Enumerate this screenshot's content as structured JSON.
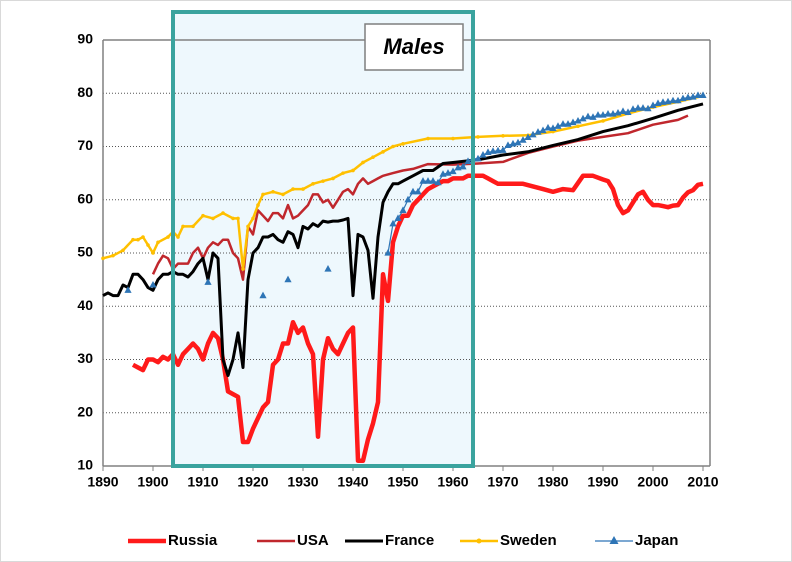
{
  "chart_data": {
    "type": "line",
    "annotation": "Males",
    "highlight": [
      1904,
      1964
    ],
    "xlim": [
      1890,
      2010
    ],
    "xticks": [
      1890,
      1900,
      1910,
      1920,
      1930,
      1940,
      1950,
      1960,
      1970,
      1980,
      1990,
      2000,
      2010
    ],
    "ylim": [
      10,
      90
    ],
    "yticks": [
      10,
      20,
      30,
      40,
      50,
      60,
      70,
      80,
      90
    ],
    "grid": true,
    "legend": "bottom",
    "series": [
      {
        "name": "Russia",
        "color": "#ff1a1a",
        "marker": "none",
        "x": [
          1896,
          1897,
          1898,
          1899,
          1900,
          1901,
          1902,
          1903,
          1904,
          1905,
          1906,
          1907,
          1908,
          1909,
          1910,
          1911,
          1912,
          1913,
          1914,
          1915,
          1916,
          1917,
          1918,
          1919,
          1920,
          1921,
          1922,
          1923,
          1924,
          1925,
          1926,
          1927,
          1928,
          1929,
          1930,
          1931,
          1932,
          1933,
          1934,
          1935,
          1936,
          1937,
          1938,
          1939,
          1940,
          1941,
          1942,
          1943,
          1944,
          1945,
          1946,
          1947,
          1948,
          1949,
          1950,
          1951,
          1952,
          1953,
          1954,
          1955,
          1956,
          1957,
          1958,
          1959,
          1960,
          1961,
          1962,
          1963,
          1964,
          1965,
          1966,
          1967,
          1968,
          1969,
          1970,
          1972,
          1974,
          1976,
          1978,
          1980,
          1982,
          1984,
          1986,
          1988,
          1990,
          1991,
          1992,
          1993,
          1994,
          1995,
          1996,
          1997,
          1998,
          1999,
          2000,
          2001,
          2002,
          2003,
          2004,
          2005,
          2006,
          2007,
          2008,
          2009,
          2010
        ],
        "values": [
          29,
          28.5,
          28,
          30,
          30,
          29.5,
          30.5,
          30,
          31,
          29,
          31,
          32,
          33,
          32,
          30,
          33,
          35,
          34,
          30,
          24,
          23.5,
          23,
          14.5,
          14.5,
          17,
          19,
          21,
          22,
          29,
          30,
          33,
          33,
          37,
          35,
          36,
          33,
          31,
          15.5,
          30,
          34,
          32,
          31,
          33,
          35,
          36,
          11,
          11,
          15,
          18,
          22,
          46,
          41,
          52,
          55,
          57,
          57,
          59,
          60,
          61,
          62,
          62.5,
          63,
          63.5,
          63.5,
          64,
          64,
          64,
          64.5,
          64.5,
          64.5,
          64.5,
          64,
          63.5,
          63,
          63,
          63,
          63,
          62.5,
          62,
          61.5,
          62,
          61.8,
          64.5,
          64.5,
          63.8,
          63.5,
          62,
          59,
          57.5,
          58,
          59.5,
          61,
          61.5,
          60,
          59,
          59,
          58.8,
          58.6,
          58.9,
          59,
          60.4,
          61.4,
          61.8,
          62.8,
          63
        ]
      },
      {
        "name": "USA",
        "color": "#c0272d",
        "marker": "none",
        "x": [
          1900,
          1901,
          1902,
          1903,
          1904,
          1905,
          1906,
          1907,
          1908,
          1909,
          1910,
          1911,
          1912,
          1913,
          1914,
          1915,
          1916,
          1917,
          1918,
          1919,
          1920,
          1921,
          1922,
          1923,
          1924,
          1925,
          1926,
          1927,
          1928,
          1929,
          1930,
          1931,
          1932,
          1933,
          1934,
          1935,
          1936,
          1937,
          1938,
          1939,
          1940,
          1941,
          1942,
          1943,
          1944,
          1945,
          1946,
          1948,
          1950,
          1952,
          1955,
          1960,
          1965,
          1970,
          1975,
          1980,
          1985,
          1990,
          1995,
          2000,
          2005,
          2007
        ],
        "values": [
          46,
          48,
          49.5,
          49,
          47,
          48,
          48,
          48,
          50,
          51,
          49,
          51,
          52,
          51.5,
          52.5,
          52.5,
          50,
          49,
          45,
          55,
          53.5,
          58,
          57,
          56,
          57.5,
          57.5,
          56.5,
          59,
          56.5,
          57,
          58,
          59,
          61,
          61,
          59.5,
          60,
          58.5,
          60,
          61.5,
          62,
          61,
          63,
          64,
          63,
          63.5,
          64,
          64.5,
          65,
          65.5,
          65.8,
          66.7,
          66.6,
          66.8,
          67.1,
          68.8,
          70,
          71.1,
          71.8,
          72.5,
          74.1,
          75,
          75.8
        ]
      },
      {
        "name": "France",
        "color": "#000000",
        "marker": "none",
        "x": [
          1890,
          1891,
          1892,
          1893,
          1894,
          1895,
          1896,
          1897,
          1898,
          1899,
          1900,
          1901,
          1902,
          1903,
          1904,
          1905,
          1906,
          1907,
          1908,
          1909,
          1910,
          1911,
          1912,
          1913,
          1914,
          1915,
          1916,
          1917,
          1918,
          1919,
          1920,
          1921,
          1922,
          1923,
          1924,
          1925,
          1926,
          1927,
          1928,
          1929,
          1930,
          1931,
          1932,
          1933,
          1934,
          1935,
          1936,
          1937,
          1938,
          1939,
          1940,
          1941,
          1942,
          1943,
          1944,
          1945,
          1946,
          1947,
          1948,
          1949,
          1950,
          1952,
          1954,
          1956,
          1958,
          1960,
          1962,
          1965,
          1970,
          1975,
          1980,
          1985,
          1990,
          1995,
          2000,
          2005,
          2010
        ],
        "values": [
          42,
          42.5,
          42,
          42,
          44,
          43.5,
          46,
          46,
          45,
          43.5,
          43,
          45,
          46,
          46,
          46.5,
          46,
          46,
          45.5,
          46.5,
          48,
          49,
          45,
          50,
          49,
          30,
          27,
          30,
          35,
          28.5,
          45,
          50,
          51,
          53,
          53,
          53.5,
          52.5,
          52,
          54,
          53.5,
          51,
          55,
          54.5,
          55.5,
          55,
          56,
          55.8,
          56,
          56,
          56.2,
          56.5,
          42,
          53.5,
          53,
          50.5,
          41.5,
          53,
          59.5,
          61.5,
          63,
          63,
          63.5,
          64.5,
          65.5,
          65.5,
          66.8,
          67,
          67.2,
          67.5,
          68.4,
          69,
          70.2,
          71.3,
          72.8,
          73.9,
          75.3,
          76.8,
          78
        ]
      },
      {
        "name": "Sweden",
        "color": "#ffc000",
        "marker": "circle",
        "x": [
          1890,
          1892,
          1894,
          1896,
          1897,
          1898,
          1899,
          1900,
          1901,
          1903,
          1904,
          1905,
          1906,
          1908,
          1910,
          1912,
          1914,
          1916,
          1917,
          1918,
          1919,
          1920,
          1921,
          1922,
          1924,
          1926,
          1928,
          1930,
          1932,
          1934,
          1936,
          1938,
          1940,
          1942,
          1944,
          1946,
          1948,
          1950,
          1955,
          1960,
          1965,
          1970,
          1975,
          1980,
          1985,
          1990,
          1995,
          2000,
          2005,
          2010
        ],
        "values": [
          49,
          49.5,
          50.5,
          52.5,
          52.5,
          53,
          51.5,
          50,
          52,
          53,
          54,
          53,
          55,
          55,
          57,
          56.5,
          57.5,
          56.5,
          56.5,
          47,
          55,
          56.5,
          59,
          61,
          61.5,
          61,
          62,
          62,
          63,
          63.5,
          64,
          65,
          65.5,
          67,
          68,
          69,
          70,
          70.5,
          71.5,
          71.5,
          71.8,
          72,
          72.1,
          72.8,
          73.8,
          74.8,
          76.2,
          77.4,
          78.4,
          79.5
        ]
      },
      {
        "name": "Japan",
        "color": "#2e75b6",
        "marker": "triangle",
        "x": [
          1895,
          1896,
          1900,
          1901,
          1911,
          1912,
          1922,
          1923,
          1927,
          1928,
          1935,
          1936,
          1947,
          1948,
          1949,
          1950,
          1951,
          1952,
          1953,
          1954,
          1955,
          1956,
          1957,
          1958,
          1959,
          1960,
          1961,
          1962,
          1963,
          1964,
          1965,
          1966,
          1967,
          1968,
          1969,
          1970,
          1971,
          1972,
          1973,
          1974,
          1975,
          1976,
          1977,
          1978,
          1979,
          1980,
          1981,
          1982,
          1983,
          1984,
          1985,
          1986,
          1987,
          1988,
          1989,
          1990,
          1991,
          1992,
          1993,
          1994,
          1995,
          1996,
          1997,
          1998,
          1999,
          2000,
          2001,
          2002,
          2003,
          2004,
          2005,
          2006,
          2007,
          2008,
          2009,
          2010
        ],
        "values": [
          43,
          null,
          44,
          null,
          44.5,
          null,
          42,
          null,
          45,
          null,
          47,
          null,
          50,
          55.5,
          56.5,
          58,
          60,
          61.5,
          61.5,
          63.5,
          63.5,
          63.5,
          63.2,
          64.8,
          65,
          65.3,
          66,
          66.2,
          67.2,
          67.7,
          67.7,
          68.4,
          68.9,
          69.1,
          69.2,
          69.3,
          70.2,
          70.5,
          70.7,
          71.2,
          71.7,
          72.2,
          72.7,
          73,
          73.5,
          73.4,
          73.8,
          74.2,
          74.2,
          74.5,
          74.8,
          75.2,
          75.6,
          75.5,
          75.9,
          75.9,
          76.1,
          76.1,
          76.3,
          76.6,
          76.4,
          77,
          77.2,
          77.2,
          77.1,
          77.7,
          78.1,
          78.3,
          78.4,
          78.6,
          78.6,
          79,
          79.2,
          79.3,
          79.6,
          79.6
        ]
      }
    ]
  }
}
